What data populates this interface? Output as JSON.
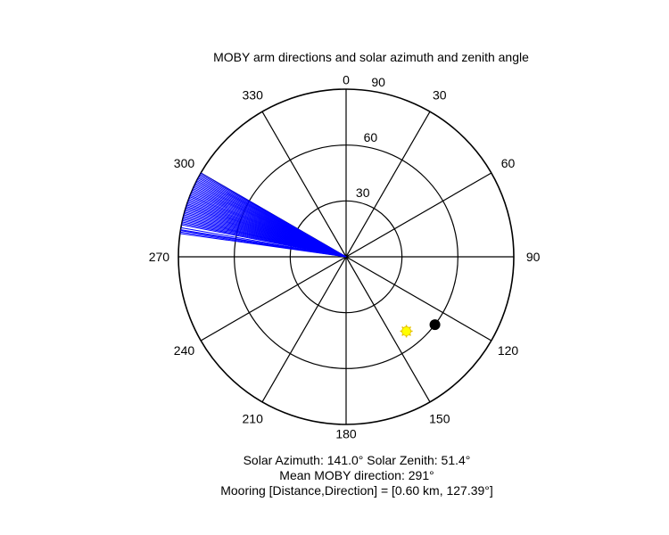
{
  "title": "MOBY arm directions and solar azimuth and zenith angle",
  "captions": {
    "line1": "Solar Azimuth: 141.0°   Solar Zenith: 51.4°",
    "line2": "Mean MOBY direction: 291°",
    "line3": "Mooring [Distance,Direction] = [0.60 km, 127.39°]"
  },
  "colors": {
    "arms": "#0000ff",
    "sun": "#ffff00",
    "mooring": "#000000",
    "grid": "#000000"
  },
  "chart_data": {
    "type": "polar",
    "r_max": 90,
    "r_ticks": [
      30,
      60,
      90
    ],
    "theta_direction": "clockwise",
    "theta_zero": "north",
    "angle_labels": [
      "0",
      "30",
      "60",
      "90",
      "120",
      "150",
      "180",
      "210",
      "240",
      "270",
      "300",
      "330"
    ],
    "series": [
      {
        "marker": "line",
        "role": "arm-directions",
        "color": "#0000ff",
        "angles_deg": [
          278,
          278.5,
          279,
          279.3,
          280,
          281,
          281.5,
          282,
          282.5,
          283,
          283.5,
          284,
          284.5,
          285,
          285.5,
          286,
          286.5,
          287,
          287.5,
          288,
          288.5,
          289,
          289.5,
          290,
          290.5,
          291,
          291.5,
          292,
          292.5,
          293,
          293.5,
          294,
          294.5,
          295,
          295.5,
          296,
          296.5,
          297,
          297.5,
          298,
          298.5,
          299,
          299.5,
          300
        ],
        "radius": 90
      },
      {
        "marker": "filled-circle",
        "role": "mooring",
        "color": "#000000",
        "points": [
          {
            "theta": 127.39,
            "r": 60
          }
        ]
      },
      {
        "marker": "sun",
        "role": "sun",
        "color": "#ffff00",
        "points": [
          {
            "theta": 141.0,
            "r": 51.4
          }
        ]
      }
    ]
  }
}
